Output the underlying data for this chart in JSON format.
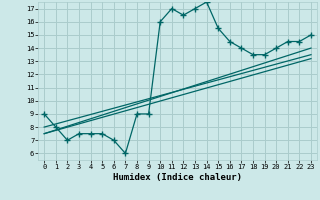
{
  "xlabel": "Humidex (Indice chaleur)",
  "bg_color": "#cce8e8",
  "grid_color": "#aacccc",
  "line_color": "#006666",
  "xlim": [
    -0.5,
    23.5
  ],
  "ylim": [
    5.5,
    17.5
  ],
  "xticks": [
    0,
    1,
    2,
    3,
    4,
    5,
    6,
    7,
    8,
    9,
    10,
    11,
    12,
    13,
    14,
    15,
    16,
    17,
    18,
    19,
    20,
    21,
    22,
    23
  ],
  "yticks": [
    6,
    7,
    8,
    9,
    10,
    11,
    12,
    13,
    14,
    15,
    16,
    17
  ],
  "series1_x": [
    0,
    1,
    2,
    3,
    4,
    5,
    6,
    7,
    8,
    9,
    10,
    11,
    12,
    13,
    14,
    15,
    16,
    17,
    18,
    19,
    20,
    21,
    22,
    23
  ],
  "series1_y": [
    9.0,
    8.0,
    7.0,
    7.5,
    7.5,
    7.5,
    7.0,
    6.0,
    9.0,
    9.0,
    16.0,
    17.0,
    16.5,
    17.0,
    17.5,
    15.5,
    14.5,
    14.0,
    13.5,
    13.5,
    14.0,
    14.5,
    14.5,
    15.0
  ],
  "series2_x": [
    0,
    23
  ],
  "series2_y": [
    8.0,
    13.5
  ],
  "series3_x": [
    0,
    23
  ],
  "series3_y": [
    7.5,
    14.0
  ],
  "series4_x": [
    0,
    23
  ],
  "series4_y": [
    7.5,
    13.2
  ]
}
